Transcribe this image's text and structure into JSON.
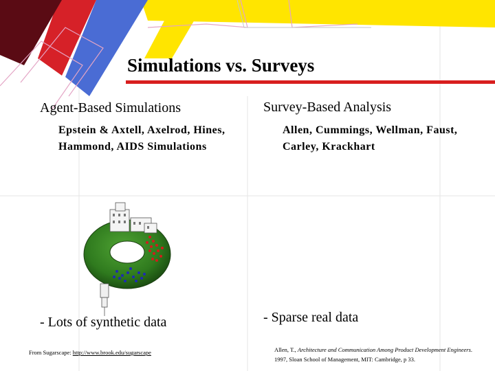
{
  "slide": {
    "title": "Simulations vs. Surveys",
    "colors": {
      "accent_red": "#d81e1e",
      "dark_red": "#5a0b14",
      "blue": "#4a6cd4",
      "yellow": "#ffe500",
      "torus_green": "#2f7a1e"
    },
    "left": {
      "heading": "Agent-Based Simulations",
      "authors": "Epstein & Axtell, Axelrod, Hines, Hammond, AIDS Simulations",
      "bullet": "- Lots of synthetic data",
      "citation_prefix": "From Sugarscape: ",
      "citation_link": "http://www.brook.edu/sugarscape"
    },
    "right": {
      "heading": "Survey-Based Analysis",
      "authors": "Allen, Cummings, Wellman, Faust, Carley, Krackhart",
      "bullet": "- Sparse real data",
      "citation_prefix": "Allen, T., ",
      "citation_title": "Architecture and Communication Among Product Development Engineers",
      "citation_suffix": ". 1997, Sloan School of Management, MIT: Cambridge, p 33."
    }
  }
}
